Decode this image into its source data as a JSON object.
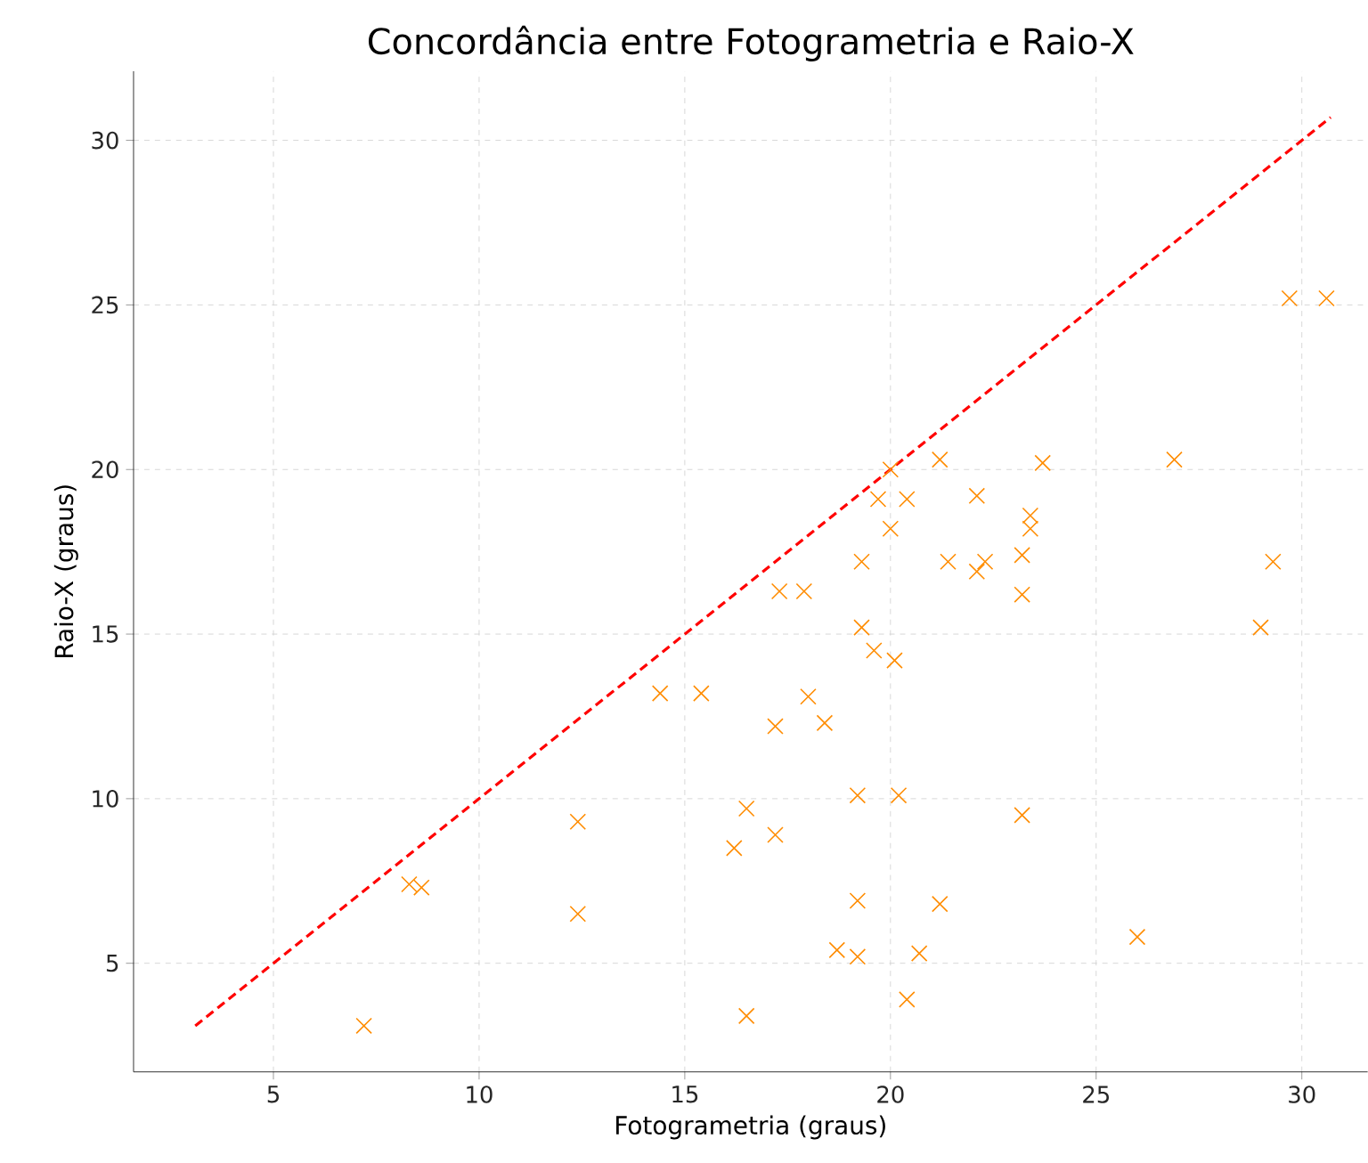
{
  "chart_data": {
    "type": "scatter",
    "title": "Concordância entre Fotogrametria e Raio-X",
    "xlabel": "Fotogrametria (graus)",
    "ylabel": "Raio-X (graus)",
    "xlim": [
      1.6,
      31.6
    ],
    "ylim": [
      1.7,
      32.1
    ],
    "xticks": [
      5,
      10,
      15,
      20,
      25,
      30
    ],
    "yticks": [
      5,
      10,
      15,
      20,
      25,
      30
    ],
    "grid": true,
    "marker": "cross",
    "series": [
      {
        "type": "scatter",
        "color": "#ff8c00",
        "x": [
          7.2,
          8.3,
          8.6,
          12.4,
          12.4,
          14.4,
          15.4,
          16.2,
          16.5,
          16.5,
          17.2,
          17.2,
          17.3,
          17.9,
          18.0,
          18.4,
          18.7,
          19.2,
          19.2,
          19.2,
          19.3,
          19.3,
          19.6,
          19.7,
          20.0,
          20.0,
          20.1,
          20.4,
          20.2,
          20.4,
          20.7,
          21.2,
          21.2,
          21.4,
          22.1,
          22.3,
          22.1,
          23.2,
          23.2,
          23.2,
          23.4,
          23.4,
          23.7,
          26.0,
          26.9,
          29.0,
          29.3,
          29.7,
          30.6
        ],
        "values": [
          3.1,
          7.4,
          7.3,
          9.3,
          6.5,
          13.2,
          13.2,
          8.5,
          9.7,
          3.4,
          12.2,
          8.9,
          16.3,
          16.3,
          13.1,
          12.3,
          5.4,
          5.2,
          10.1,
          6.9,
          17.2,
          15.2,
          14.5,
          19.1,
          20.0,
          18.2,
          14.2,
          19.1,
          10.1,
          3.9,
          5.3,
          6.8,
          20.3,
          17.2,
          16.9,
          17.2,
          19.2,
          9.5,
          16.2,
          17.4,
          18.2,
          18.6,
          20.2,
          5.8,
          20.3,
          15.2,
          17.2,
          25.2,
          25.2
        ]
      },
      {
        "type": "line",
        "color": "#ff0000",
        "line_style": "dashed",
        "marker": "none",
        "x": [
          3.1,
          30.7
        ],
        "values": [
          3.1,
          30.7
        ]
      }
    ]
  }
}
